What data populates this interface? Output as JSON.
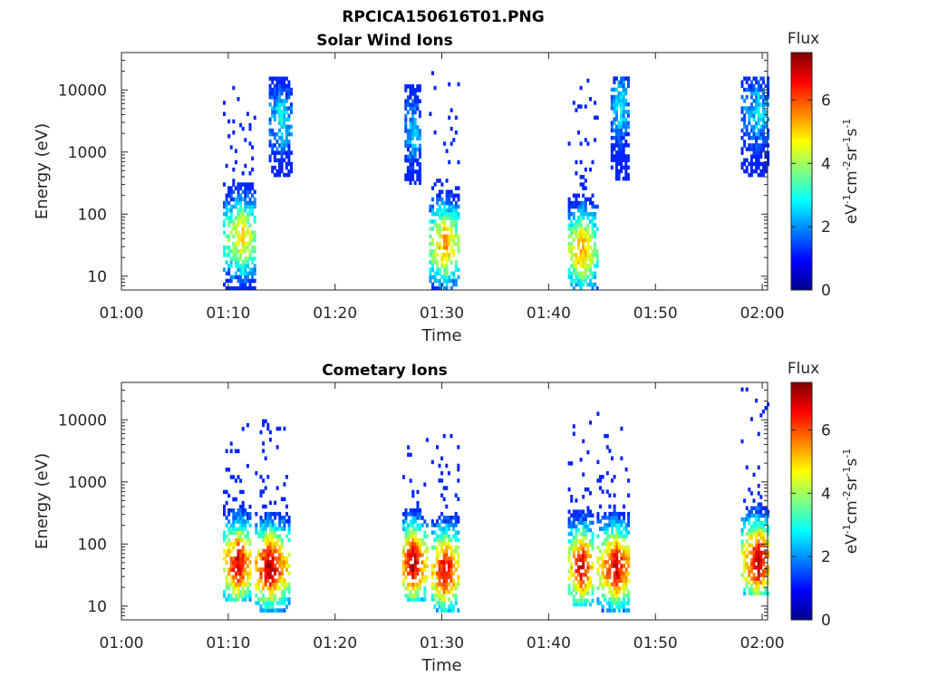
{
  "figure": {
    "title": "RPCICA150616T01.PNG",
    "colorbar": {
      "label": "Flux",
      "unit_base": "eV",
      "unit_parts": [
        [
          "-1",
          "cm"
        ],
        [
          "-2",
          "sr"
        ],
        [
          "-1",
          "s"
        ],
        [
          "-1",
          ""
        ]
      ],
      "ticks": [
        "0",
        "2",
        "4",
        "6"
      ],
      "range": [
        0,
        7.5
      ],
      "colormap": "jet"
    },
    "colors": {
      "axis": "#262626",
      "background": "#ffffff"
    }
  },
  "chart_data": [
    {
      "type": "heatmap",
      "title": "Solar Wind Ions",
      "xlabel": "Time",
      "ylabel": "Energy (eV)",
      "xticks": [
        "01:00",
        "01:10",
        "01:20",
        "01:30",
        "01:40",
        "01:50",
        "02:00"
      ],
      "xlim_minutes": [
        0,
        60.5
      ],
      "yticks": [
        "10",
        "100",
        "1000",
        "10000"
      ],
      "ylim": [
        6,
        40000
      ],
      "yscale": "log",
      "bursts": [
        {
          "t0": 9.5,
          "t1": 12.5,
          "e_lo": 6,
          "e_hi": 30000,
          "peak_e": 40,
          "peak_flux": 5.0,
          "peak_t": 11.2
        },
        {
          "t0": 13.8,
          "t1": 15.8,
          "e_lo": 400,
          "e_hi": 15000,
          "peak_e": 3000,
          "peak_flux": 2.8,
          "peak_t": 14.8
        },
        {
          "t0": 26.5,
          "t1": 28.0,
          "e_lo": 300,
          "e_hi": 12000,
          "peak_e": 2000,
          "peak_flux": 2.5,
          "peak_t": 27.2
        },
        {
          "t0": 28.8,
          "t1": 31.5,
          "e_lo": 6,
          "e_hi": 25000,
          "peak_e": 30,
          "peak_flux": 5.5,
          "peak_t": 30.2
        },
        {
          "t0": 41.8,
          "t1": 44.5,
          "e_lo": 6,
          "e_hi": 25000,
          "peak_e": 25,
          "peak_flux": 5.5,
          "peak_t": 43.0
        },
        {
          "t0": 45.8,
          "t1": 47.5,
          "e_lo": 350,
          "e_hi": 15000,
          "peak_e": 5000,
          "peak_flux": 2.8,
          "peak_t": 46.6
        },
        {
          "t0": 58.0,
          "t1": 60.5,
          "e_lo": 400,
          "e_hi": 15000,
          "peak_e": 4000,
          "peak_flux": 2.6,
          "peak_t": 59.5
        }
      ]
    },
    {
      "type": "heatmap",
      "title": "Cometary Ions",
      "xlabel": "Time",
      "ylabel": "Energy (eV)",
      "xticks": [
        "01:00",
        "01:10",
        "01:20",
        "01:30",
        "01:40",
        "01:50",
        "02:00"
      ],
      "xlim_minutes": [
        0,
        60.5
      ],
      "yticks": [
        "10",
        "100",
        "1000",
        "10000"
      ],
      "ylim": [
        6,
        40000
      ],
      "yscale": "log",
      "bursts": [
        {
          "t0": 9.5,
          "t1": 12.0,
          "e_lo": 12,
          "e_hi": 10000,
          "peak_e": 45,
          "peak_flux": 7.0,
          "peak_t": 10.8
        },
        {
          "t0": 12.5,
          "t1": 15.8,
          "e_lo": 8,
          "e_hi": 10000,
          "peak_e": 40,
          "peak_flux": 7.2,
          "peak_t": 13.8
        },
        {
          "t0": 26.3,
          "t1": 28.5,
          "e_lo": 12,
          "e_hi": 5000,
          "peak_e": 45,
          "peak_flux": 7.3,
          "peak_t": 27.2
        },
        {
          "t0": 29.0,
          "t1": 31.5,
          "e_lo": 8,
          "e_hi": 6000,
          "peak_e": 35,
          "peak_flux": 7.0,
          "peak_t": 30.2
        },
        {
          "t0": 41.8,
          "t1": 44.0,
          "e_lo": 10,
          "e_hi": 9000,
          "peak_e": 40,
          "peak_flux": 7.0,
          "peak_t": 43.0
        },
        {
          "t0": 44.5,
          "t1": 47.5,
          "e_lo": 8,
          "e_hi": 16000,
          "peak_e": 40,
          "peak_flux": 7.0,
          "peak_t": 46.2
        },
        {
          "t0": 58.0,
          "t1": 60.5,
          "e_lo": 15,
          "e_hi": 30000,
          "peak_e": 50,
          "peak_flux": 7.3,
          "peak_t": 59.5
        }
      ]
    }
  ]
}
